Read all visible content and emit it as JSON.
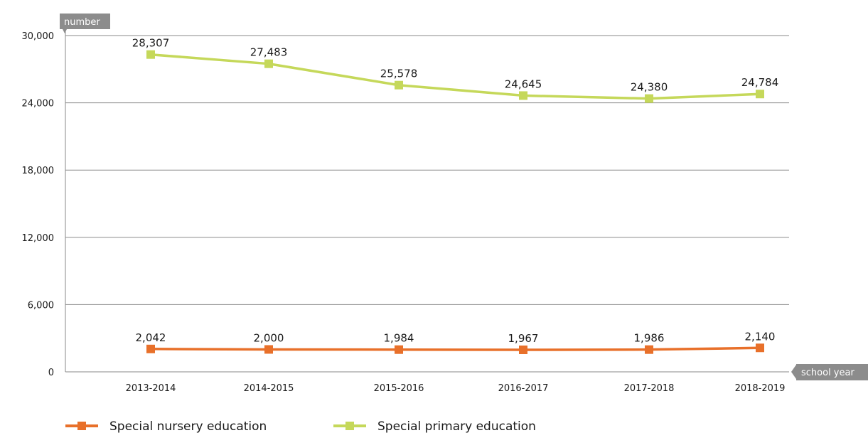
{
  "chart_data": {
    "type": "line",
    "ylabel": "number",
    "xlabel": "school year",
    "categories": [
      "2013-2014",
      "2014-2015",
      "2015-2016",
      "2016-2017",
      "2017-2018",
      "2018-2019"
    ],
    "yticks": [
      "0",
      "6,000",
      "12,000",
      "18,000",
      "24,000",
      "30,000"
    ],
    "ylim": [
      0,
      30000
    ],
    "grid": true,
    "legend_position": "bottom-left",
    "series": [
      {
        "name": "Special nursery education",
        "color": "#e8702a",
        "values": [
          2042,
          2000,
          1984,
          1967,
          1986,
          2140
        ],
        "labels": [
          "2,042",
          "2,000",
          "1,984",
          "1,967",
          "1,986",
          "2,140"
        ]
      },
      {
        "name": "Special primary education",
        "color": "#c5d85a",
        "values": [
          28307,
          27483,
          25578,
          24645,
          24380,
          24784
        ],
        "labels": [
          "28,307",
          "27,483",
          "25,578",
          "24,645",
          "24,380",
          "24,784"
        ]
      }
    ],
    "axis_tag_color": "#8c8c8c"
  }
}
